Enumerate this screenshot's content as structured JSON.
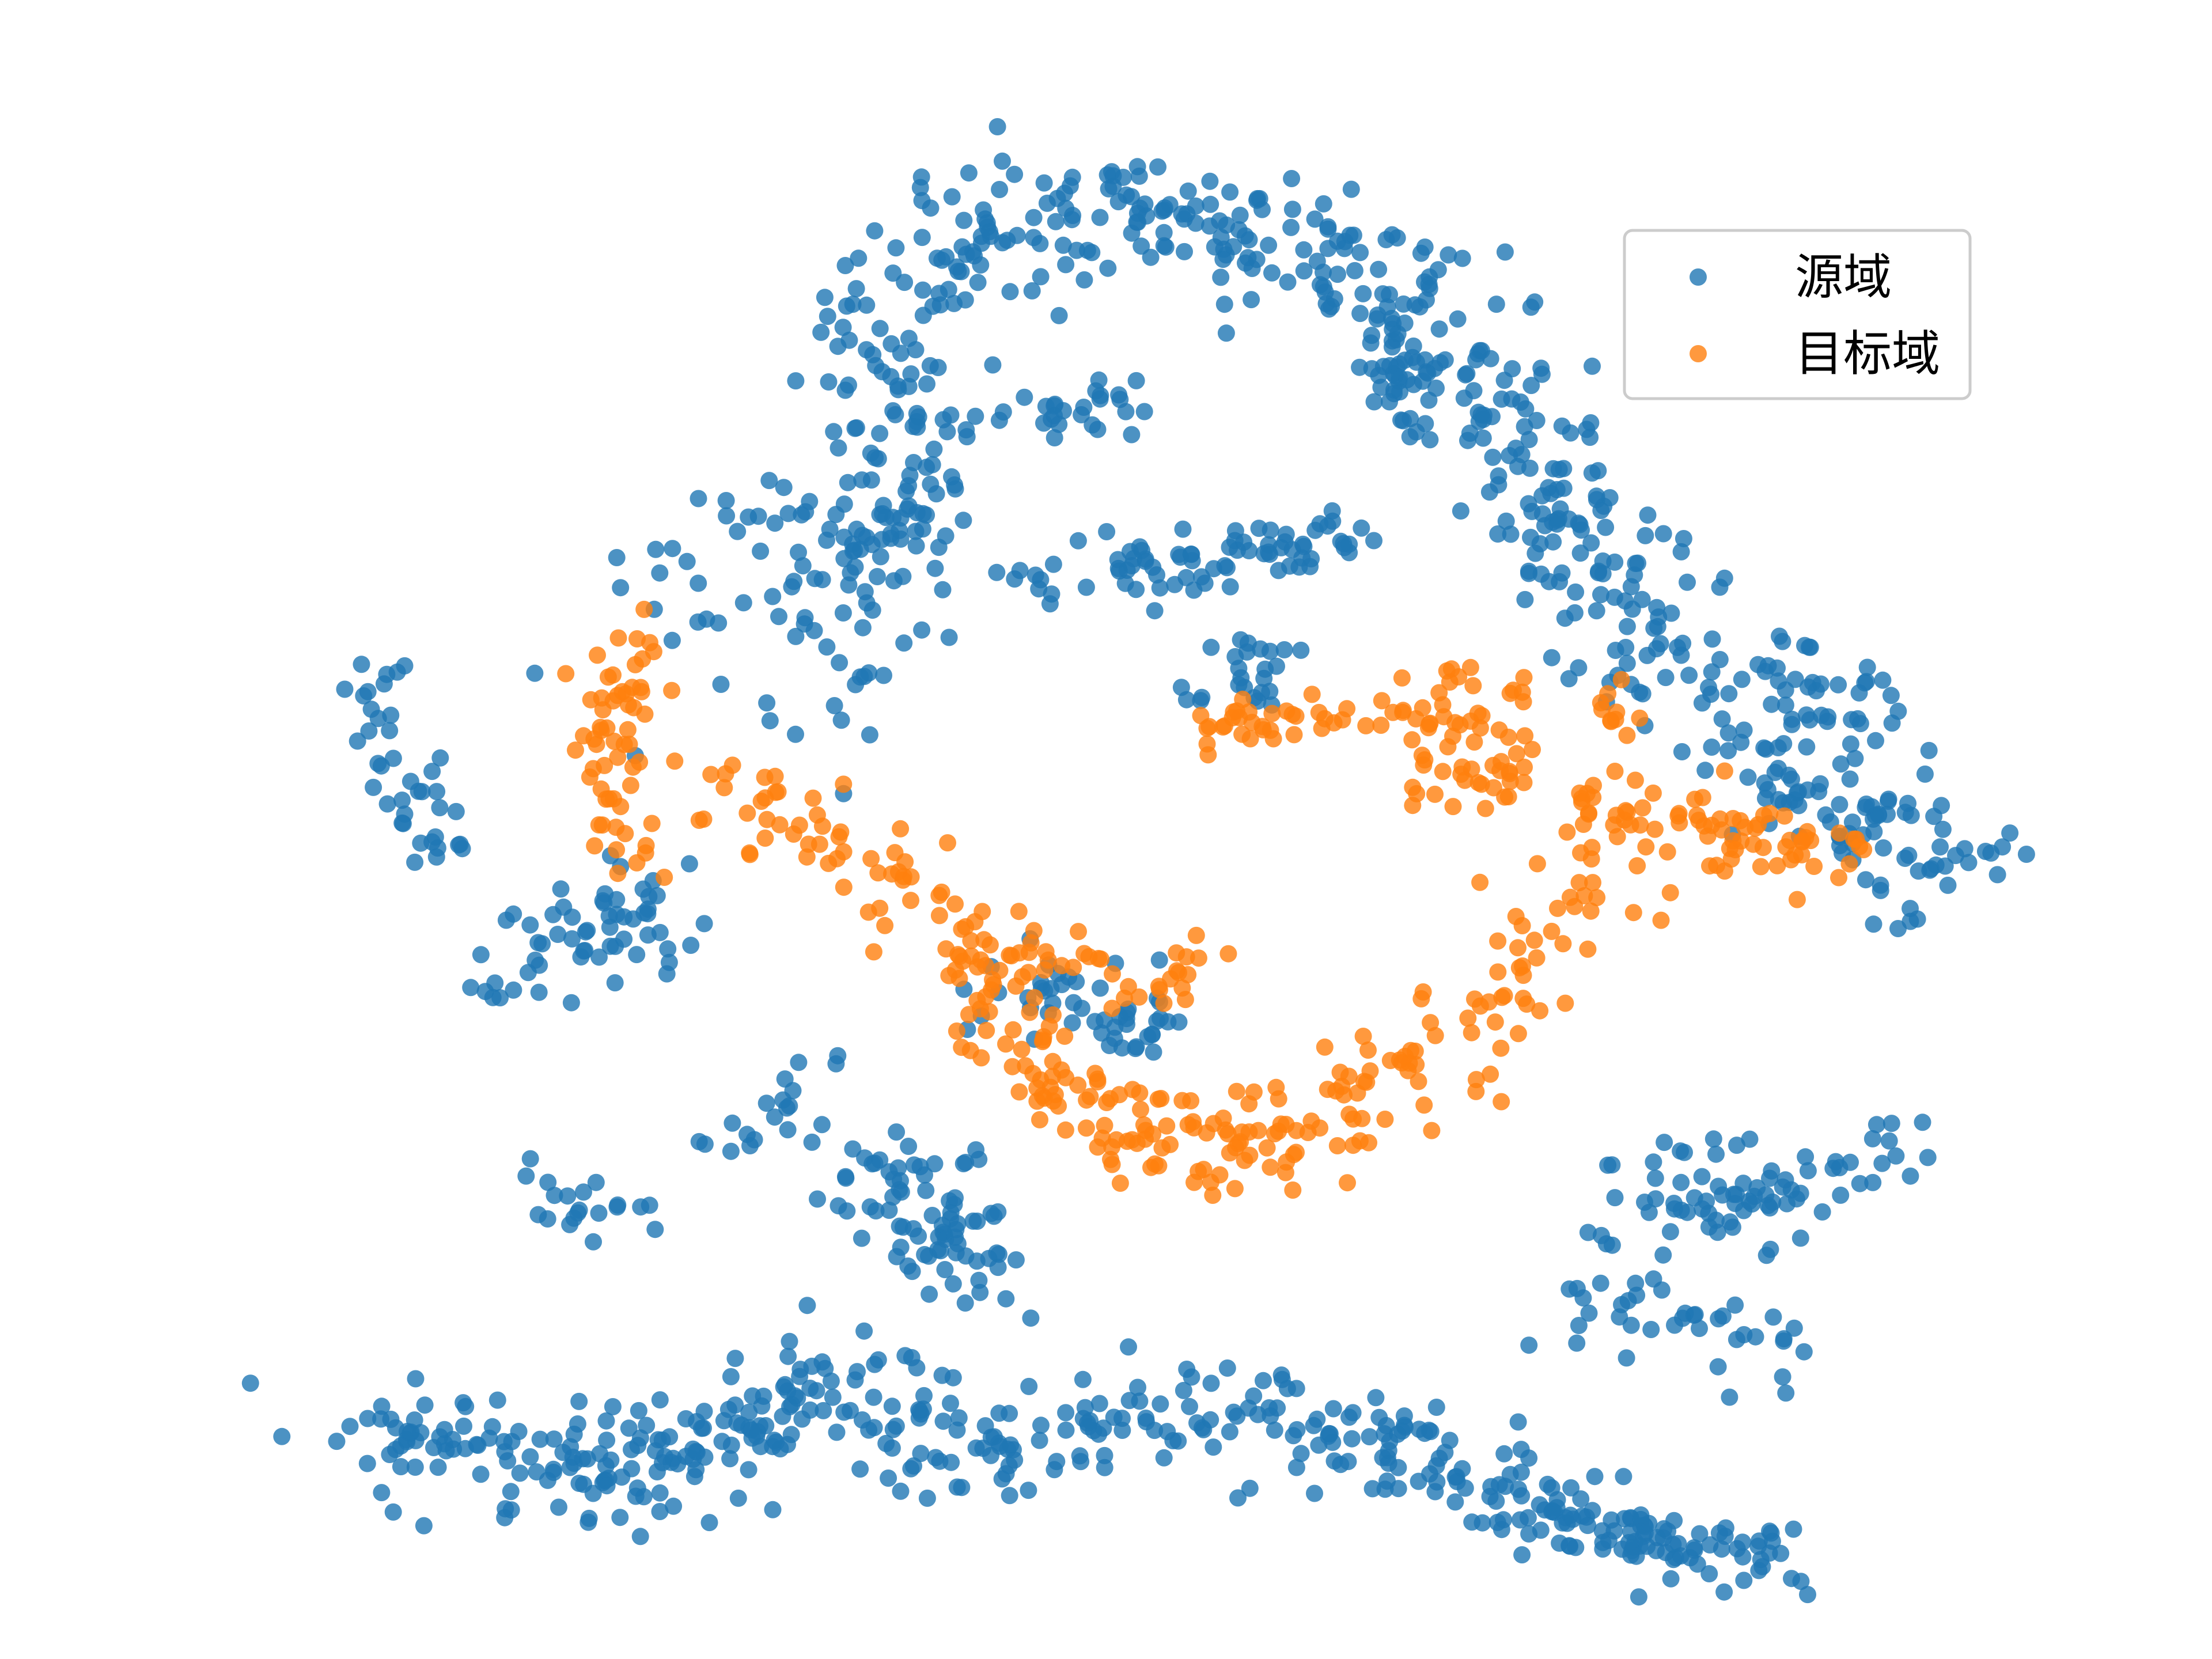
{
  "chart_data": {
    "type": "scatter",
    "grid": false,
    "axes_visible": false,
    "xlim": [
      0,
      1
    ],
    "ylim": [
      0,
      1
    ],
    "legend": {
      "placement": "top-right",
      "entries": [
        {
          "label": "源域",
          "color": "#1f77b4"
        },
        {
          "label": "目标域",
          "color": "#ff7f0e"
        }
      ]
    },
    "series": [
      {
        "name": "源域",
        "color": "#1f77b4",
        "clusters": [
          {
            "points": [
              [
                0.64,
                0.98
              ],
              [
                0.67,
                0.84
              ]
            ],
            "n": 30,
            "spread": 0.01
          },
          {
            "points": [
              [
                0.0,
                0.67
              ],
              [
                0.05,
                0.5
              ]
            ],
            "n": 40,
            "spread": 0.014
          },
          {
            "points": [
              [
                0.1,
                0.23
              ],
              [
                0.175,
                0.17
              ]
            ],
            "n": 20,
            "spread": 0.014
          },
          {
            "points": [
              [
                0.3,
                0.95
              ],
              [
                0.34,
                0.9
              ],
              [
                0.36,
                0.76
              ]
            ],
            "n": 60,
            "spread": 0.02
          },
          {
            "points": [
              [
                0.34,
                0.95
              ],
              [
                0.38,
                1.02
              ],
              [
                0.46,
                1.06
              ],
              [
                0.52,
                1.03
              ]
            ],
            "n": 120,
            "spread": 0.026
          },
          {
            "points": [
              [
                0.52,
                1.04
              ],
              [
                0.6,
                1.03
              ],
              [
                0.68,
                0.95
              ],
              [
                0.72,
                0.86
              ]
            ],
            "n": 140,
            "spread": 0.03
          },
          {
            "points": [
              [
                0.4,
                0.86
              ],
              [
                0.48,
                0.89
              ]
            ],
            "n": 30,
            "spread": 0.016
          },
          {
            "points": [
              [
                0.42,
                0.73
              ],
              [
                0.54,
                0.76
              ]
            ],
            "n": 50,
            "spread": 0.018
          },
          {
            "points": [
              [
                0.56,
                0.76
              ],
              [
                0.63,
                0.78
              ]
            ],
            "n": 30,
            "spread": 0.016
          },
          {
            "points": [
              [
                0.72,
                0.86
              ],
              [
                0.79,
                0.73
              ],
              [
                0.85,
                0.65
              ],
              [
                0.94,
                0.62
              ]
            ],
            "n": 170,
            "spread": 0.03
          },
          {
            "points": [
              [
                0.88,
                0.58
              ],
              [
                0.95,
                0.52
              ],
              [
                1.02,
                0.5
              ]
            ],
            "n": 80,
            "spread": 0.024
          },
          {
            "points": [
              [
                0.2,
                0.7
              ],
              [
                0.31,
                0.81
              ],
              [
                0.3,
                0.61
              ]
            ],
            "n": 100,
            "spread": 0.035
          },
          {
            "points": [
              [
                0.1,
                0.39
              ],
              [
                0.19,
                0.47
              ]
            ],
            "n": 60,
            "spread": 0.024
          },
          {
            "points": [
              [
                0.39,
                0.4
              ],
              [
                0.5,
                0.35
              ]
            ],
            "n": 50,
            "spread": 0.018
          },
          {
            "points": [
              [
                0.33,
                0.24
              ],
              [
                0.39,
                0.14
              ]
            ],
            "n": 80,
            "spread": 0.022
          },
          {
            "points": [
              [
                0.24,
                0.25
              ],
              [
                0.29,
                0.32
              ]
            ],
            "n": 20,
            "spread": 0.016
          },
          {
            "points": [
              [
                0.8,
                0.18
              ],
              [
                0.98,
                0.25
              ]
            ],
            "n": 80,
            "spread": 0.026
          },
          {
            "points": [
              [
                0.75,
                0.13
              ],
              [
                0.89,
                0.07
              ]
            ],
            "n": 40,
            "spread": 0.022
          },
          {
            "points": [
              [
                0.0,
                0.01
              ],
              [
                0.1,
                -0.02
              ],
              [
                0.18,
                -0.02
              ],
              [
                0.26,
                0.01
              ],
              [
                0.31,
                0.06
              ],
              [
                0.38,
                -0.01
              ],
              [
                0.44,
                0.0
              ],
              [
                0.52,
                0.03
              ],
              [
                0.62,
                0.0
              ],
              [
                0.72,
                -0.01
              ]
            ],
            "n": 380,
            "spread": 0.028
          },
          {
            "points": [
              [
                0.72,
                -0.05
              ],
              [
                0.82,
                -0.09
              ],
              [
                0.9,
                -0.11
              ]
            ],
            "n": 110,
            "spread": 0.016
          },
          {
            "points": [
              [
                0.55,
                0.62
              ],
              [
                0.57,
                0.69
              ]
            ],
            "n": 25,
            "spread": 0.014
          },
          {
            "points": [
              [
                0.96,
                0.45
              ],
              [
                0.98,
                0.44
              ]
            ],
            "n": 6,
            "spread": 0.008
          }
        ]
      },
      {
        "name": "目标域",
        "color": "#ff7f0e",
        "clusters": [
          {
            "points": [
              [
                0.18,
                0.69
              ],
              [
                0.15,
                0.56
              ],
              [
                0.17,
                0.5
              ]
            ],
            "n": 60,
            "spread": 0.014
          },
          {
            "points": [
              [
                0.22,
                0.55
              ],
              [
                0.32,
                0.51
              ],
              [
                0.38,
                0.44
              ],
              [
                0.42,
                0.33
              ]
            ],
            "n": 100,
            "spread": 0.022
          },
          {
            "points": [
              [
                0.4,
                0.33
              ],
              [
                0.49,
                0.26
              ],
              [
                0.58,
                0.25
              ],
              [
                0.65,
                0.31
              ]
            ],
            "n": 130,
            "spread": 0.024
          },
          {
            "points": [
              [
                0.65,
                0.31
              ],
              [
                0.73,
                0.4
              ],
              [
                0.79,
                0.49
              ]
            ],
            "n": 60,
            "spread": 0.02
          },
          {
            "points": [
              [
                0.53,
                0.61
              ],
              [
                0.62,
                0.62
              ]
            ],
            "n": 30,
            "spread": 0.012
          },
          {
            "points": [
              [
                0.64,
                0.62
              ],
              [
                0.71,
                0.64
              ],
              [
                0.72,
                0.57
              ],
              [
                0.66,
                0.56
              ]
            ],
            "n": 70,
            "spread": 0.018
          },
          {
            "points": [
              [
                0.76,
                0.54
              ],
              [
                0.84,
                0.53
              ],
              [
                0.93,
                0.5
              ]
            ],
            "n": 80,
            "spread": 0.018
          },
          {
            "points": [
              [
                0.44,
                0.43
              ],
              [
                0.49,
                0.37
              ],
              [
                0.53,
                0.43
              ]
            ],
            "n": 30,
            "spread": 0.016
          },
          {
            "points": [
              [
                0.78,
                0.64
              ],
              [
                0.8,
                0.61
              ]
            ],
            "n": 10,
            "spread": 0.012
          }
        ]
      }
    ]
  }
}
